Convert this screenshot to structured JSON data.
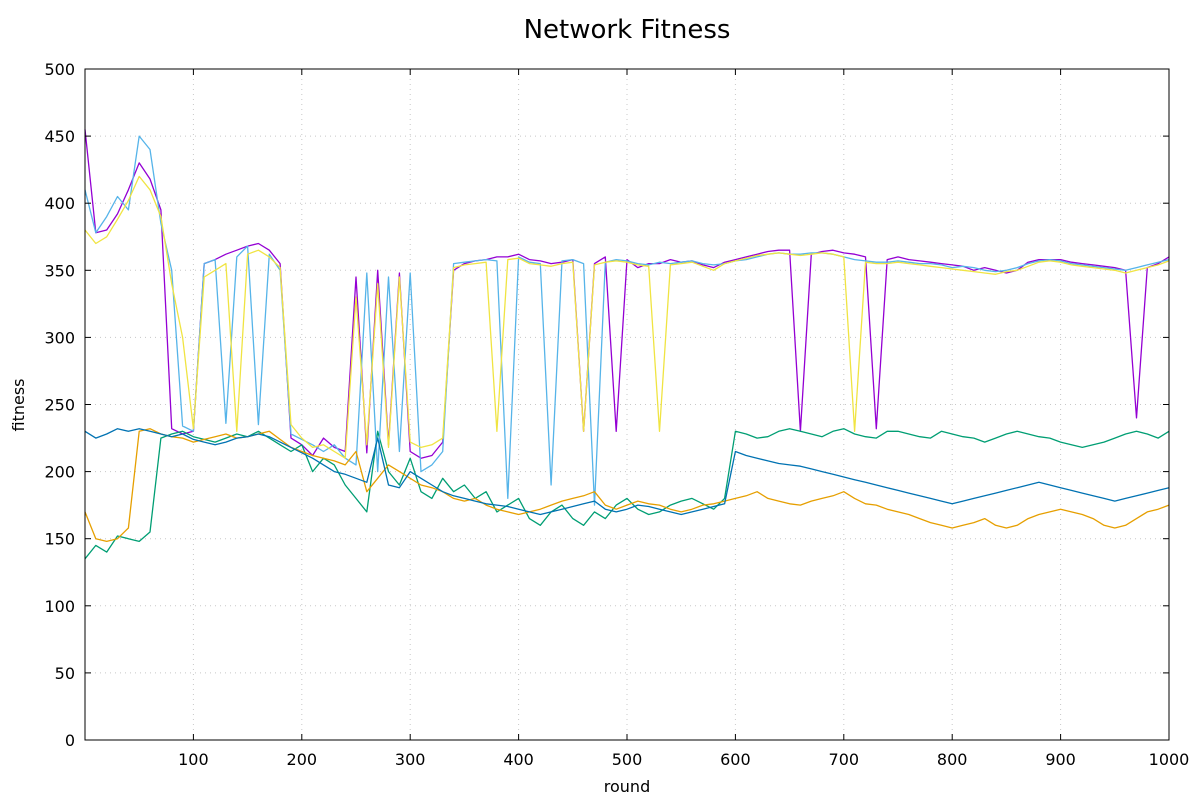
{
  "chart_data": {
    "type": "line",
    "title": "Network Fitness",
    "xlabel": "round",
    "ylabel": "fitness",
    "xlim": [
      0,
      1000
    ],
    "ylim": [
      0,
      500
    ],
    "x_ticks": [
      100,
      200,
      300,
      400,
      500,
      600,
      700,
      800,
      900,
      1000
    ],
    "y_ticks": [
      0,
      50,
      100,
      150,
      200,
      250,
      300,
      350,
      400,
      450,
      500
    ],
    "grid": true,
    "legend": "none",
    "colors": [
      "#9400d3",
      "#009e73",
      "#56b4e9",
      "#e69f00",
      "#f0e442",
      "#0072b2",
      "#e51e10",
      "#000000"
    ],
    "x": [
      0,
      10,
      20,
      30,
      40,
      50,
      60,
      70,
      80,
      90,
      100,
      110,
      120,
      130,
      140,
      150,
      160,
      170,
      180,
      190,
      200,
      210,
      220,
      230,
      240,
      250,
      260,
      270,
      280,
      290,
      300,
      310,
      320,
      330,
      340,
      350,
      360,
      370,
      380,
      390,
      400,
      410,
      420,
      430,
      440,
      450,
      460,
      470,
      480,
      490,
      500,
      510,
      520,
      530,
      540,
      550,
      560,
      570,
      580,
      590,
      600,
      610,
      620,
      630,
      640,
      650,
      660,
      670,
      680,
      690,
      700,
      710,
      720,
      730,
      740,
      750,
      760,
      770,
      780,
      790,
      800,
      810,
      820,
      830,
      840,
      850,
      860,
      870,
      880,
      890,
      900,
      910,
      920,
      930,
      940,
      950,
      960,
      970,
      980,
      990,
      1000
    ],
    "series": [
      {
        "values": [
          455,
          378,
          380,
          392,
          410,
          430,
          418,
          395,
          232,
          228,
          230,
          355,
          358,
          362,
          365,
          368,
          370,
          365,
          355,
          225,
          220,
          212,
          225,
          218,
          215,
          345,
          214,
          350,
          220,
          348,
          215,
          210,
          212,
          222,
          350,
          355,
          357,
          358,
          360,
          360,
          362,
          358,
          357,
          355,
          356,
          358,
          230,
          355,
          360,
          230,
          358,
          352,
          355,
          355,
          358,
          356,
          357,
          354,
          352,
          356,
          358,
          360,
          362,
          364,
          365,
          365,
          230,
          362,
          364,
          365,
          363,
          362,
          360,
          232,
          358,
          360,
          358,
          357,
          356,
          355,
          354,
          353,
          350,
          352,
          350,
          348,
          350,
          356,
          358,
          358,
          358,
          356,
          355,
          354,
          353,
          352,
          350,
          240,
          352,
          355,
          360
        ]
      },
      {
        "values": [
          135,
          145,
          140,
          152,
          150,
          148,
          155,
          225,
          228,
          230,
          226,
          224,
          222,
          225,
          228,
          226,
          230,
          225,
          220,
          215,
          220,
          200,
          210,
          205,
          190,
          180,
          170,
          230,
          200,
          190,
          210,
          185,
          180,
          195,
          185,
          190,
          180,
          185,
          170,
          175,
          180,
          165,
          160,
          170,
          175,
          165,
          160,
          170,
          165,
          175,
          180,
          172,
          168,
          170,
          175,
          178,
          180,
          176,
          172,
          180,
          230,
          228,
          225,
          226,
          230,
          232,
          230,
          228,
          226,
          230,
          232,
          228,
          226,
          225,
          230,
          230,
          228,
          226,
          225,
          230,
          228,
          226,
          225,
          222,
          225,
          228,
          230,
          228,
          226,
          225,
          222,
          220,
          218,
          220,
          222,
          225,
          228,
          230,
          228,
          225,
          230
        ]
      },
      {
        "values": [
          410,
          378,
          390,
          405,
          395,
          450,
          440,
          385,
          350,
          234,
          230,
          355,
          358,
          236,
          360,
          368,
          235,
          362,
          350,
          228,
          224,
          220,
          215,
          220,
          210,
          205,
          348,
          200,
          345,
          215,
          348,
          200,
          205,
          215,
          355,
          356,
          357,
          358,
          357,
          180,
          360,
          356,
          355,
          190,
          357,
          358,
          355,
          175,
          356,
          358,
          357,
          355,
          354,
          356,
          355,
          356,
          357,
          355,
          354,
          355,
          357,
          358,
          360,
          362,
          363,
          362,
          362,
          363,
          363,
          362,
          360,
          358,
          357,
          356,
          356,
          357,
          356,
          355,
          355,
          354,
          352,
          353,
          352,
          350,
          349,
          350,
          352,
          355,
          357,
          358,
          357,
          355,
          354,
          353,
          352,
          351,
          350,
          352,
          354,
          356,
          358
        ]
      },
      {
        "values": [
          170,
          150,
          148,
          150,
          158,
          230,
          232,
          228,
          226,
          225,
          222,
          224,
          226,
          228,
          225,
          226,
          228,
          230,
          224,
          218,
          215,
          212,
          210,
          208,
          205,
          215,
          185,
          195,
          205,
          200,
          195,
          190,
          188,
          185,
          180,
          178,
          180,
          175,
          172,
          170,
          168,
          170,
          172,
          175,
          178,
          180,
          182,
          185,
          175,
          172,
          175,
          178,
          176,
          175,
          172,
          170,
          172,
          175,
          176,
          178,
          180,
          182,
          185,
          180,
          178,
          176,
          175,
          178,
          180,
          182,
          185,
          180,
          176,
          175,
          172,
          170,
          168,
          165,
          162,
          160,
          158,
          160,
          162,
          165,
          160,
          158,
          160,
          165,
          168,
          170,
          172,
          170,
          168,
          165,
          160,
          158,
          160,
          165,
          170,
          172,
          175
        ]
      },
      {
        "values": [
          380,
          370,
          375,
          388,
          402,
          420,
          410,
          390,
          340,
          300,
          232,
          345,
          350,
          355,
          230,
          362,
          365,
          360,
          352,
          235,
          225,
          218,
          220,
          215,
          210,
          330,
          220,
          340,
          218,
          345,
          222,
          218,
          220,
          225,
          352,
          354,
          355,
          356,
          230,
          358,
          359,
          355,
          354,
          353,
          355,
          356,
          230,
          354,
          356,
          357,
          356,
          354,
          353,
          230,
          354,
          355,
          356,
          353,
          350,
          355,
          357,
          359,
          361,
          362,
          363,
          362,
          361,
          362,
          363,
          362,
          360,
          230,
          356,
          355,
          355,
          356,
          355,
          354,
          353,
          352,
          351,
          350,
          349,
          348,
          347,
          349,
          350,
          353,
          356,
          357,
          356,
          354,
          353,
          352,
          351,
          350,
          348,
          350,
          352,
          354,
          357
        ]
      },
      {
        "values": [
          230,
          225,
          228,
          232,
          230,
          232,
          230,
          228,
          226,
          228,
          224,
          222,
          220,
          222,
          225,
          226,
          228,
          226,
          222,
          218,
          214,
          210,
          205,
          200,
          198,
          195,
          192,
          225,
          190,
          188,
          200,
          195,
          190,
          185,
          182,
          180,
          178,
          176,
          175,
          174,
          172,
          170,
          168,
          170,
          172,
          174,
          176,
          178,
          172,
          170,
          172,
          175,
          174,
          172,
          170,
          168,
          170,
          172,
          174,
          176,
          215,
          212,
          210,
          208,
          206,
          205,
          204,
          202,
          200,
          198,
          196,
          194,
          192,
          190,
          188,
          186,
          184,
          182,
          180,
          178,
          176,
          178,
          180,
          182,
          184,
          186,
          188,
          190,
          192,
          190,
          188,
          186,
          184,
          182,
          180,
          178,
          180,
          182,
          184,
          186,
          188
        ]
      }
    ]
  }
}
